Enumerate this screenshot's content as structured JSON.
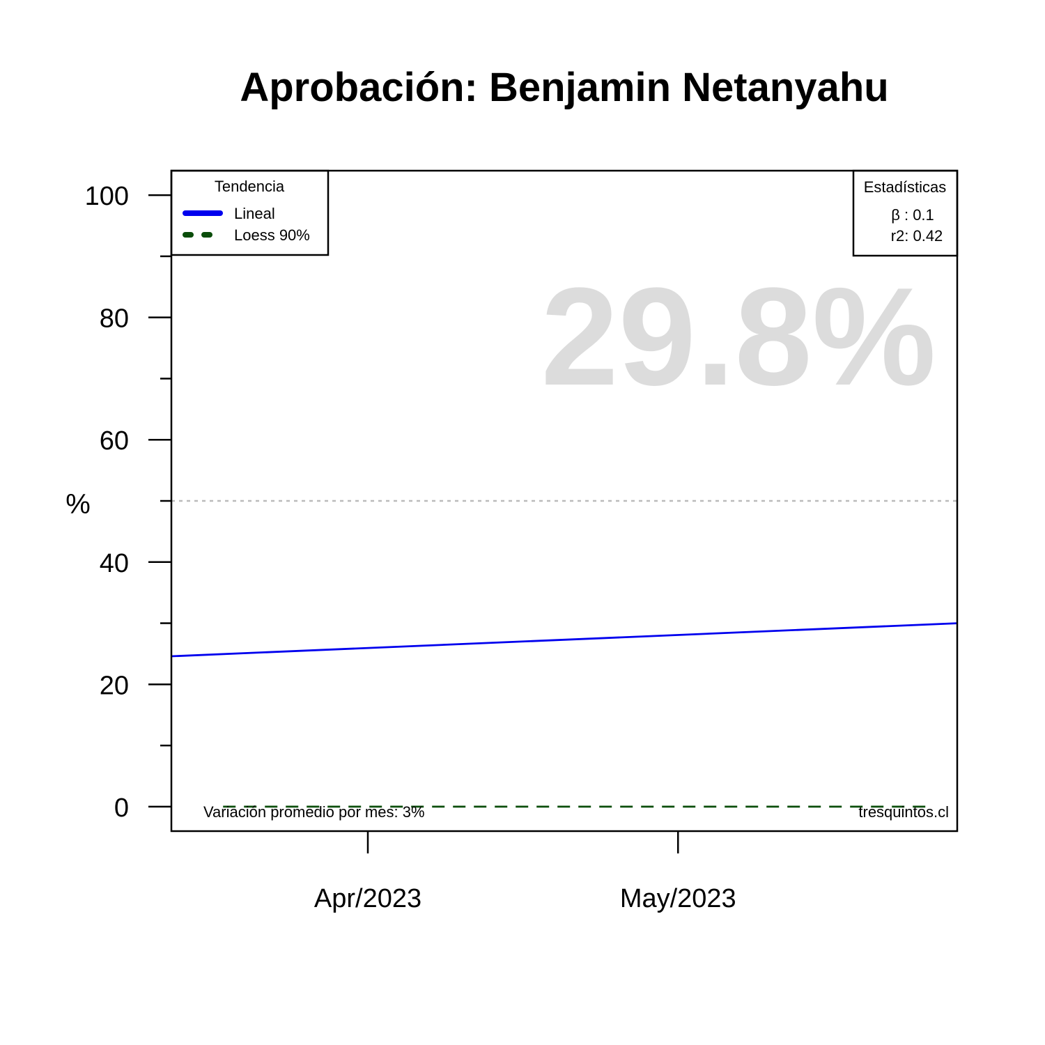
{
  "chart_data": {
    "type": "line",
    "title": "Aprobación: Benjamin Netanyahu",
    "ylabel": "%",
    "xlabel": "",
    "ylim": [
      -4,
      104
    ],
    "yticks": [
      0,
      20,
      40,
      60,
      80,
      100
    ],
    "yminor_ticks": [
      10,
      30,
      50,
      70,
      90
    ],
    "x_ticks": [
      {
        "label": "Apr/2023",
        "date": "2023-04-01"
      },
      {
        "label": "May/2023",
        "date": "2023-05-01"
      }
    ],
    "xlim": [
      "2023-03-13",
      "2023-05-28"
    ],
    "reference_line": {
      "y": 50,
      "style": "dotted",
      "color": "#bbbbbb"
    },
    "series": [
      {
        "name": "Lineal",
        "style": "solid",
        "color": "#0000ee",
        "x": [
          "2023-03-13",
          "2023-05-28"
        ],
        "y": [
          24.6,
          30.0
        ]
      },
      {
        "name": "Loess 90%",
        "style": "dashed",
        "color": "#0a4d0a",
        "x": [
          "2023-03-18",
          "2023-05-25"
        ],
        "y": [
          0,
          0
        ]
      }
    ],
    "legend_trend": {
      "title": "Tendencia",
      "items": [
        "Lineal",
        "Loess 90%"
      ],
      "position": "top-left"
    },
    "legend_stats": {
      "title": "Estadísticas",
      "lines": [
        "β : 0.1",
        "r2: 0.42"
      ],
      "position": "top-right"
    },
    "big_value": "29.8%",
    "footer_left": "Variación promedio por mes: 3%",
    "footer_right": "tresquintos.cl",
    "grid": false
  }
}
